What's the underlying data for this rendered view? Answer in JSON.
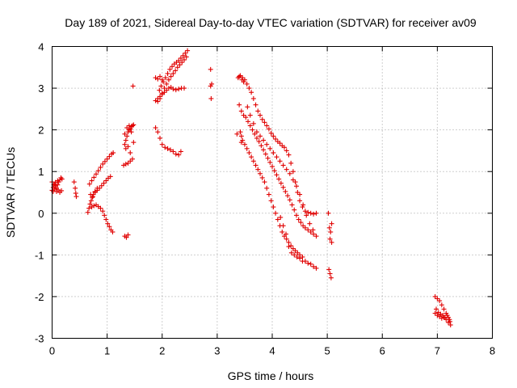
{
  "chart_data": {
    "type": "scatter",
    "title": "Day 189 of 2021, Sidereal Day-to-day VTEC variation (SDTVAR) for receiver av09",
    "xlabel": "GPS time / hours",
    "ylabel": "SDTVAR / TECUs",
    "xlim": [
      0,
      8
    ],
    "ylim": [
      -3,
      4
    ],
    "x_ticks": [
      0,
      1,
      2,
      3,
      4,
      5,
      6,
      7,
      8
    ],
    "y_ticks": [
      -3,
      -2,
      -1,
      0,
      1,
      2,
      3,
      4
    ],
    "grid": true,
    "marker": "+",
    "color": "#e00000",
    "series": [
      {
        "points": [
          [
            0.0,
            0.55
          ],
          [
            0.02,
            0.62
          ],
          [
            0.04,
            0.7
          ],
          [
            0.06,
            0.66
          ],
          [
            0.08,
            0.6
          ],
          [
            0.1,
            0.68
          ],
          [
            0.12,
            0.75
          ],
          [
            0.14,
            0.8
          ],
          [
            0.16,
            0.85
          ],
          [
            0.18,
            0.82
          ],
          [
            0.0,
            0.75
          ],
          [
            0.03,
            0.68
          ],
          [
            0.05,
            0.58
          ],
          [
            0.08,
            0.52
          ],
          [
            0.11,
            0.56
          ],
          [
            0.14,
            0.5
          ],
          [
            0.17,
            0.54
          ],
          [
            0.02,
            0.52
          ],
          [
            0.06,
            0.74
          ],
          [
            0.1,
            0.78
          ],
          [
            0.4,
            0.75
          ],
          [
            0.42,
            0.6
          ],
          [
            0.43,
            0.48
          ],
          [
            0.44,
            0.4
          ],
          [
            0.65,
            0.02
          ],
          [
            0.67,
            0.12
          ],
          [
            0.69,
            0.22
          ],
          [
            0.71,
            0.3
          ],
          [
            0.73,
            0.38
          ],
          [
            0.75,
            0.45
          ],
          [
            0.78,
            0.5
          ],
          [
            0.82,
            0.55
          ],
          [
            0.86,
            0.6
          ],
          [
            0.9,
            0.66
          ],
          [
            0.94,
            0.72
          ],
          [
            0.98,
            0.78
          ],
          [
            1.02,
            0.84
          ],
          [
            1.06,
            0.88
          ],
          [
            0.68,
            0.7
          ],
          [
            0.72,
            0.78
          ],
          [
            0.76,
            0.86
          ],
          [
            0.8,
            0.94
          ],
          [
            0.84,
            1.02
          ],
          [
            0.88,
            1.1
          ],
          [
            0.92,
            1.18
          ],
          [
            0.96,
            1.24
          ],
          [
            1.0,
            1.3
          ],
          [
            1.04,
            1.36
          ],
          [
            1.08,
            1.42
          ],
          [
            1.11,
            1.45
          ],
          [
            0.7,
            0.45
          ],
          [
            0.74,
            0.4
          ],
          [
            0.78,
            0.52
          ],
          [
            0.82,
            0.6
          ],
          [
            0.72,
            0.15
          ],
          [
            0.76,
            0.18
          ],
          [
            0.8,
            0.2
          ],
          [
            0.84,
            0.16
          ],
          [
            0.88,
            0.12
          ],
          [
            0.92,
            0.05
          ],
          [
            0.95,
            -0.05
          ],
          [
            0.98,
            -0.15
          ],
          [
            1.01,
            -0.25
          ],
          [
            1.04,
            -0.32
          ],
          [
            1.07,
            -0.4
          ],
          [
            1.1,
            -0.45
          ],
          [
            1.32,
            -0.55
          ],
          [
            1.35,
            -0.58
          ],
          [
            1.38,
            -0.52
          ],
          [
            1.3,
            1.15
          ],
          [
            1.34,
            1.18
          ],
          [
            1.38,
            1.2
          ],
          [
            1.42,
            1.25
          ],
          [
            1.46,
            1.3
          ],
          [
            1.32,
            1.65
          ],
          [
            1.34,
            1.75
          ],
          [
            1.36,
            1.85
          ],
          [
            1.38,
            1.95
          ],
          [
            1.4,
            2.0
          ],
          [
            1.42,
            2.02
          ],
          [
            1.44,
            2.08
          ],
          [
            1.46,
            2.1
          ],
          [
            1.48,
            2.12
          ],
          [
            1.32,
            1.9
          ],
          [
            1.36,
            2.05
          ],
          [
            1.4,
            2.1
          ],
          [
            1.44,
            1.95
          ],
          [
            1.48,
            1.7
          ],
          [
            1.34,
            1.55
          ],
          [
            1.38,
            1.6
          ],
          [
            1.42,
            1.45
          ],
          [
            1.47,
            3.05
          ],
          [
            1.88,
            2.05
          ],
          [
            1.92,
            1.95
          ],
          [
            1.96,
            1.8
          ],
          [
            2.0,
            1.65
          ],
          [
            2.05,
            1.58
          ],
          [
            2.1,
            1.55
          ],
          [
            2.15,
            1.52
          ],
          [
            2.2,
            1.48
          ],
          [
            2.25,
            1.42
          ],
          [
            2.3,
            1.4
          ],
          [
            2.34,
            1.48
          ],
          [
            1.88,
            3.25
          ],
          [
            1.92,
            3.22
          ],
          [
            1.96,
            3.28
          ],
          [
            2.0,
            3.2
          ],
          [
            1.88,
            2.7
          ],
          [
            1.92,
            2.75
          ],
          [
            1.96,
            2.8
          ],
          [
            2.0,
            2.85
          ],
          [
            2.04,
            2.9
          ],
          [
            2.08,
            2.95
          ],
          [
            2.12,
            3.0
          ],
          [
            2.16,
            3.02
          ],
          [
            2.2,
            2.98
          ],
          [
            2.25,
            2.96
          ],
          [
            2.3,
            2.98
          ],
          [
            2.35,
            3.0
          ],
          [
            2.4,
            3.0
          ],
          [
            1.95,
            2.95
          ],
          [
            1.98,
            3.05
          ],
          [
            2.02,
            3.15
          ],
          [
            2.06,
            3.25
          ],
          [
            2.1,
            3.35
          ],
          [
            2.14,
            3.45
          ],
          [
            2.18,
            3.52
          ],
          [
            2.22,
            3.58
          ],
          [
            2.26,
            3.62
          ],
          [
            2.3,
            3.66
          ],
          [
            2.34,
            3.72
          ],
          [
            2.38,
            3.78
          ],
          [
            2.42,
            3.84
          ],
          [
            2.46,
            3.9
          ],
          [
            1.92,
            2.68
          ],
          [
            1.96,
            2.75
          ],
          [
            2.0,
            2.88
          ],
          [
            2.04,
            3.0
          ],
          [
            2.08,
            3.1
          ],
          [
            2.12,
            3.2
          ],
          [
            2.16,
            3.28
          ],
          [
            2.2,
            3.35
          ],
          [
            2.24,
            3.42
          ],
          [
            2.28,
            3.5
          ],
          [
            2.32,
            3.56
          ],
          [
            2.36,
            3.62
          ],
          [
            2.4,
            3.68
          ],
          [
            2.44,
            3.75
          ],
          [
            2.88,
            3.45
          ],
          [
            2.88,
            3.05
          ],
          [
            2.9,
            3.1
          ],
          [
            2.89,
            2.75
          ],
          [
            3.38,
            3.25
          ],
          [
            3.42,
            3.3
          ],
          [
            3.46,
            3.25
          ],
          [
            3.5,
            3.2
          ],
          [
            3.54,
            3.1
          ],
          [
            3.58,
            3.0
          ],
          [
            3.62,
            2.9
          ],
          [
            3.66,
            2.75
          ],
          [
            3.7,
            2.6
          ],
          [
            3.74,
            2.45
          ],
          [
            3.78,
            2.35
          ],
          [
            3.82,
            2.25
          ],
          [
            3.86,
            2.18
          ],
          [
            3.9,
            2.1
          ],
          [
            3.94,
            2.02
          ],
          [
            3.98,
            1.92
          ],
          [
            4.02,
            1.85
          ],
          [
            4.06,
            1.78
          ],
          [
            4.1,
            1.72
          ],
          [
            4.14,
            1.68
          ],
          [
            4.18,
            1.62
          ],
          [
            4.22,
            1.58
          ],
          [
            4.26,
            1.5
          ],
          [
            4.3,
            1.4
          ],
          [
            4.34,
            1.2
          ],
          [
            4.38,
            1.0
          ],
          [
            4.42,
            0.75
          ],
          [
            4.46,
            0.5
          ],
          [
            4.5,
            0.3
          ],
          [
            4.55,
            0.15
          ],
          [
            4.6,
            0.05
          ],
          [
            4.65,
            0.02
          ],
          [
            4.7,
            0.0
          ],
          [
            4.75,
            -0.02
          ],
          [
            4.8,
            0.0
          ],
          [
            3.4,
            2.6
          ],
          [
            3.44,
            2.45
          ],
          [
            3.48,
            2.35
          ],
          [
            3.52,
            2.3
          ],
          [
            3.56,
            2.2
          ],
          [
            3.6,
            2.1
          ],
          [
            3.64,
            2.0
          ],
          [
            3.68,
            1.9
          ],
          [
            3.72,
            1.8
          ],
          [
            3.76,
            1.72
          ],
          [
            3.8,
            1.62
          ],
          [
            3.84,
            1.52
          ],
          [
            3.88,
            1.42
          ],
          [
            3.92,
            1.32
          ],
          [
            3.96,
            1.22
          ],
          [
            4.0,
            1.12
          ],
          [
            4.04,
            1.02
          ],
          [
            4.08,
            0.92
          ],
          [
            4.12,
            0.82
          ],
          [
            4.16,
            0.72
          ],
          [
            4.2,
            0.62
          ],
          [
            4.24,
            0.52
          ],
          [
            4.28,
            0.42
          ],
          [
            4.32,
            0.32
          ],
          [
            4.36,
            0.2
          ],
          [
            4.4,
            0.08
          ],
          [
            4.44,
            -0.05
          ],
          [
            4.48,
            -0.15
          ],
          [
            4.52,
            -0.22
          ],
          [
            4.56,
            -0.3
          ],
          [
            4.6,
            -0.35
          ],
          [
            4.65,
            -0.4
          ],
          [
            4.7,
            -0.45
          ],
          [
            4.75,
            -0.5
          ],
          [
            4.8,
            -0.55
          ],
          [
            3.42,
            1.95
          ],
          [
            3.46,
            1.75
          ],
          [
            3.5,
            1.65
          ],
          [
            3.54,
            1.55
          ],
          [
            3.58,
            1.45
          ],
          [
            3.62,
            1.35
          ],
          [
            3.66,
            1.25
          ],
          [
            3.7,
            1.15
          ],
          [
            3.74,
            1.05
          ],
          [
            3.78,
            0.95
          ],
          [
            3.82,
            0.85
          ],
          [
            3.86,
            0.75
          ],
          [
            3.9,
            0.6
          ],
          [
            3.94,
            0.45
          ],
          [
            3.98,
            0.3
          ],
          [
            4.02,
            0.15
          ],
          [
            4.06,
            0.0
          ],
          [
            4.1,
            -0.15
          ],
          [
            4.14,
            -0.3
          ],
          [
            4.18,
            -0.45
          ],
          [
            4.22,
            -0.55
          ],
          [
            4.26,
            -0.62
          ],
          [
            4.3,
            -0.7
          ],
          [
            4.34,
            -0.78
          ],
          [
            4.38,
            -0.85
          ],
          [
            4.42,
            -0.9
          ],
          [
            4.46,
            -0.95
          ],
          [
            4.5,
            -1.0
          ],
          [
            4.55,
            -1.05
          ],
          [
            4.6,
            -1.15
          ],
          [
            4.65,
            -1.2
          ],
          [
            4.7,
            -1.22
          ],
          [
            4.75,
            -1.28
          ],
          [
            4.8,
            -1.32
          ],
          [
            3.55,
            2.55
          ],
          [
            3.6,
            2.35
          ],
          [
            3.66,
            2.15
          ],
          [
            3.72,
            1.95
          ],
          [
            3.78,
            1.85
          ],
          [
            3.84,
            1.75
          ],
          [
            3.9,
            1.65
          ],
          [
            3.96,
            1.55
          ],
          [
            4.02,
            1.45
          ],
          [
            4.08,
            1.35
          ],
          [
            4.14,
            1.25
          ],
          [
            4.2,
            1.15
          ],
          [
            4.26,
            1.05
          ],
          [
            4.32,
            0.95
          ],
          [
            4.38,
            0.8
          ],
          [
            4.44,
            0.65
          ],
          [
            4.5,
            0.45
          ],
          [
            4.56,
            0.2
          ],
          [
            4.62,
            -0.05
          ],
          [
            4.68,
            -0.25
          ],
          [
            4.74,
            -0.4
          ],
          [
            3.45,
            3.2
          ],
          [
            3.48,
            3.15
          ],
          [
            3.4,
            3.28
          ],
          [
            3.44,
            1.85
          ],
          [
            3.36,
            1.9
          ],
          [
            3.44,
            1.7
          ],
          [
            4.15,
            -0.1
          ],
          [
            4.2,
            -0.3
          ],
          [
            4.25,
            -0.5
          ],
          [
            4.3,
            -0.8
          ],
          [
            4.35,
            -0.95
          ],
          [
            4.4,
            -1.0
          ],
          [
            4.45,
            -1.05
          ],
          [
            4.5,
            -1.08
          ],
          [
            4.55,
            -1.15
          ],
          [
            5.02,
            0.0
          ],
          [
            5.04,
            -0.35
          ],
          [
            5.06,
            -0.45
          ],
          [
            5.08,
            -0.25
          ],
          [
            5.05,
            -0.62
          ],
          [
            5.08,
            -0.7
          ],
          [
            5.03,
            -1.35
          ],
          [
            5.05,
            -1.45
          ],
          [
            5.07,
            -1.55
          ],
          [
            6.96,
            -2.0
          ],
          [
            7.0,
            -2.05
          ],
          [
            7.04,
            -2.1
          ],
          [
            7.08,
            -2.2
          ],
          [
            7.12,
            -2.3
          ],
          [
            7.16,
            -2.4
          ],
          [
            7.2,
            -2.5
          ],
          [
            7.23,
            -2.6
          ],
          [
            6.96,
            -2.4
          ],
          [
            7.0,
            -2.45
          ],
          [
            7.04,
            -2.48
          ],
          [
            7.08,
            -2.52
          ],
          [
            7.12,
            -2.5
          ],
          [
            7.16,
            -2.55
          ],
          [
            7.2,
            -2.62
          ],
          [
            7.24,
            -2.68
          ],
          [
            6.98,
            -2.3
          ],
          [
            7.02,
            -2.38
          ],
          [
            7.06,
            -2.42
          ],
          [
            7.1,
            -2.45
          ],
          [
            7.14,
            -2.5
          ],
          [
            7.18,
            -2.45
          ],
          [
            7.22,
            -2.55
          ]
        ]
      }
    ]
  }
}
